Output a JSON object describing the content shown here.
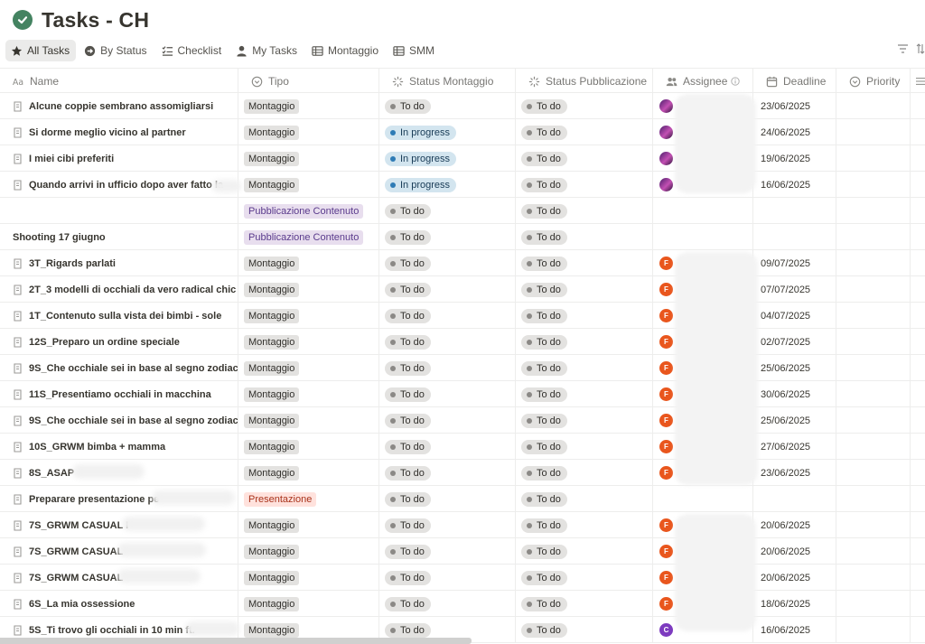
{
  "page": {
    "title": "Tasks - CH",
    "title_icon": "check-circle-icon"
  },
  "tabs": [
    {
      "label": "All Tasks",
      "icon": "star-icon",
      "active": true
    },
    {
      "label": "By Status",
      "icon": "arrow-circle-icon",
      "active": false
    },
    {
      "label": "Checklist",
      "icon": "checklist-icon",
      "active": false
    },
    {
      "label": "My Tasks",
      "icon": "person-icon",
      "active": false
    },
    {
      "label": "Montaggio",
      "icon": "table-icon",
      "active": false
    },
    {
      "label": "SMM",
      "icon": "table-icon",
      "active": false
    }
  ],
  "view_controls": {
    "filter_icon": "filter-icon",
    "sort_icon": "sort-icon"
  },
  "columns": {
    "name": "Name",
    "tipo": "Tipo",
    "status_montaggio": "Status Montaggio",
    "status_pubblicazione": "Status Pubblicazione",
    "assignee": "Assignee",
    "deadline": "Deadline",
    "priority": "Priority"
  },
  "rows": [
    {
      "name": "Alcune coppie sembrano assomigliarsi",
      "tipo": "Montaggio",
      "status_montaggio": "To do",
      "status_pubblicazione": "To do",
      "avatar": "",
      "deadline": "23/06/2025"
    },
    {
      "name": "Si dorme meglio vicino al partner",
      "tipo": "Montaggio",
      "status_montaggio": "In progress",
      "status_pubblicazione": "To do",
      "avatar": "",
      "deadline": "24/06/2025"
    },
    {
      "name": "I miei cibi preferiti",
      "tipo": "Montaggio",
      "status_montaggio": "In progress",
      "status_pubblicazione": "To do",
      "avatar": "",
      "deadline": "19/06/2025"
    },
    {
      "name": "Quando arrivi in ufficio dopo aver fatto la",
      "tipo": "Montaggio",
      "status_montaggio": "In progress",
      "status_pubblicazione": "To do",
      "avatar": "",
      "deadline": "16/06/2025"
    },
    {
      "name": "",
      "tipo": "Pubblicazione Contenuto",
      "status_montaggio": "To do",
      "status_pubblicazione": "To do",
      "avatar": "",
      "deadline": ""
    },
    {
      "name": "Shooting 17 giugno",
      "tipo": "Pubblicazione Contenuto",
      "status_montaggio": "To do",
      "status_pubblicazione": "To do",
      "avatar": "",
      "deadline": ""
    },
    {
      "name": "3T_Rigards parlati",
      "tipo": "Montaggio",
      "status_montaggio": "To do",
      "status_pubblicazione": "To do",
      "avatar": "F",
      "deadline": "09/07/2025"
    },
    {
      "name": "2T_3 modelli di occhiali da vero radical chic",
      "tipo": "Montaggio",
      "status_montaggio": "To do",
      "status_pubblicazione": "To do",
      "avatar": "F",
      "deadline": "07/07/2025"
    },
    {
      "name": "1T_Contenuto sulla vista dei bimbi - sole",
      "tipo": "Montaggio",
      "status_montaggio": "To do",
      "status_pubblicazione": "To do",
      "avatar": "F",
      "deadline": "04/07/2025"
    },
    {
      "name": "12S_Preparo un ordine speciale",
      "tipo": "Montaggio",
      "status_montaggio": "To do",
      "status_pubblicazione": "To do",
      "avatar": "F",
      "deadline": "02/07/2025"
    },
    {
      "name": "9S_Che occhiale sei in base al segno zodiacale",
      "tipo": "Montaggio",
      "status_montaggio": "To do",
      "status_pubblicazione": "To do",
      "avatar": "F",
      "deadline": "25/06/2025"
    },
    {
      "name": "11S_Presentiamo occhiali in macchina",
      "tipo": "Montaggio",
      "status_montaggio": "To do",
      "status_pubblicazione": "To do",
      "avatar": "F",
      "deadline": "30/06/2025"
    },
    {
      "name": "9S_Che occhiale sei in base al segno zodiacale",
      "tipo": "Montaggio",
      "status_montaggio": "To do",
      "status_pubblicazione": "To do",
      "avatar": "F",
      "deadline": "25/06/2025"
    },
    {
      "name": "10S_GRWM bimba + mamma",
      "tipo": "Montaggio",
      "status_montaggio": "To do",
      "status_pubblicazione": "To do",
      "avatar": "F",
      "deadline": "27/06/2025"
    },
    {
      "name": "8S_ASAP",
      "tipo": "Montaggio",
      "status_montaggio": "To do",
      "status_pubblicazione": "To do",
      "avatar": "F",
      "deadline": "23/06/2025"
    },
    {
      "name": "Preparare presentazione pe",
      "tipo": "Presentazione",
      "status_montaggio": "To do",
      "status_pubblicazione": "To do",
      "avatar": "",
      "deadline": ""
    },
    {
      "name": "7S_GRWM CASUAL I",
      "tipo": "Montaggio",
      "status_montaggio": "To do",
      "status_pubblicazione": "To do",
      "avatar": "F",
      "deadline": "20/06/2025"
    },
    {
      "name": "7S_GRWM CASUAL",
      "tipo": "Montaggio",
      "status_montaggio": "To do",
      "status_pubblicazione": "To do",
      "avatar": "F",
      "deadline": "20/06/2025"
    },
    {
      "name": "7S_GRWM CASUAL",
      "tipo": "Montaggio",
      "status_montaggio": "To do",
      "status_pubblicazione": "To do",
      "avatar": "F",
      "deadline": "20/06/2025"
    },
    {
      "name": "6S_La mia ossessione",
      "tipo": "Montaggio",
      "status_montaggio": "To do",
      "status_pubblicazione": "To do",
      "avatar": "F",
      "deadline": "18/06/2025"
    },
    {
      "name": "5S_Ti trovo gli occhiali in 10 min ft.",
      "tipo": "Montaggio",
      "status_montaggio": "To do",
      "status_pubblicazione": "To do",
      "avatar": "C",
      "deadline": "16/06/2025"
    }
  ],
  "colors": {
    "accent_green": "#448361",
    "montaggio_tag": "#e3e2e0",
    "pubblicazione_tag": "#e8deee",
    "presentazione_tag": "#ffe2dd",
    "in_progress": "#d3e5ef",
    "avatar_f": "#e9561d",
    "avatar_c": "#7d3bbf"
  }
}
